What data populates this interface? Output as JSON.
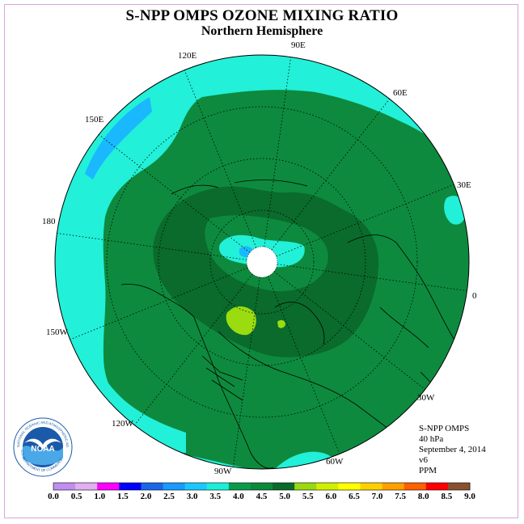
{
  "title": "S-NPP OMPS OZONE MIXING RATIO",
  "subtitle": "Northern Hemisphere",
  "longitude_labels": [
    "90E",
    "60E",
    "30E",
    "0",
    "30W",
    "60W",
    "90W",
    "120W",
    "150W",
    "180",
    "150E",
    "120E"
  ],
  "info": {
    "instrument": "S-NPP OMPS",
    "pressure": "40 hPa",
    "date": "September 4, 2014",
    "version": "v6",
    "units": "PPM"
  },
  "logo": {
    "text": "NOAA",
    "ring_text": "NATIONAL OCEANIC AND ATMOSPHERIC ADMINISTRATION",
    "lower_text": "U.S. DEPARTMENT OF COMMERCE"
  },
  "color_scale": {
    "labels": [
      "0.0",
      "0.5",
      "1.0",
      "1.5",
      "2.0",
      "2.5",
      "3.0",
      "3.5",
      "4.0",
      "4.5",
      "5.0",
      "5.5",
      "6.0",
      "6.5",
      "7.0",
      "7.5",
      "8.0",
      "8.5",
      "9.0"
    ],
    "colors": [
      "#c08ef0",
      "#e0b0f0",
      "#ff00ff",
      "#0000ff",
      "#1a66e8",
      "#1a99ff",
      "#1ac8ff",
      "#1af0d8",
      "#0a9a4a",
      "#0a8a3a",
      "#0a6a2a",
      "#9ad810",
      "#d0f000",
      "#ffff00",
      "#ffd000",
      "#ffa000",
      "#ff6000",
      "#ff0000",
      "#885030"
    ]
  },
  "colors": {
    "map_background": "#22f0d8",
    "field_medium": "#0d8a3e",
    "field_dark": "#0a6b2c",
    "field_light_green": "#9adc10",
    "field_blue": "#1ab8ff",
    "pole_mask": "#ffffff"
  }
}
